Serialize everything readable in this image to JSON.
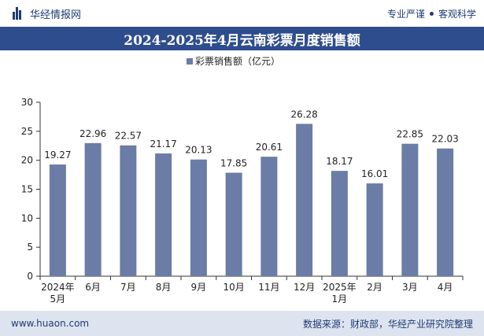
{
  "header": {
    "brand": "华经情报网",
    "tag1": "专业严谨",
    "tag2": "客观科学"
  },
  "chart_data": {
    "type": "bar",
    "title": "2024-2025年4月云南彩票月度销售额",
    "categories": [
      "2024年\n5月",
      "6月",
      "7月",
      "8月",
      "9月",
      "10月",
      "11月",
      "12月",
      "2025年\n1月",
      "2月",
      "3月",
      "4月"
    ],
    "series": [
      {
        "name": "彩票销售额（亿元）",
        "values": [
          19.27,
          22.96,
          22.57,
          21.17,
          20.13,
          17.85,
          20.61,
          26.28,
          18.17,
          16.01,
          22.85,
          22.03
        ]
      }
    ],
    "value_labels": [
      "19.27",
      "22.96",
      "22.57",
      "21.17",
      "20.13",
      "17.85",
      "20.61",
      "26.28",
      "18.17",
      "16.01",
      "22.85",
      "22.03"
    ],
    "ylim": [
      0,
      30
    ],
    "yticks": [
      0,
      5,
      10,
      15,
      20,
      25,
      30
    ],
    "legend_position": "top-center",
    "grid": false,
    "colors": {
      "bar": "#6b7ca6",
      "axis": "#333333",
      "text": "#222222"
    }
  },
  "footer": {
    "website": "www.huaon.com",
    "source": "数据来源：财政部，华经产业研究院整理"
  }
}
